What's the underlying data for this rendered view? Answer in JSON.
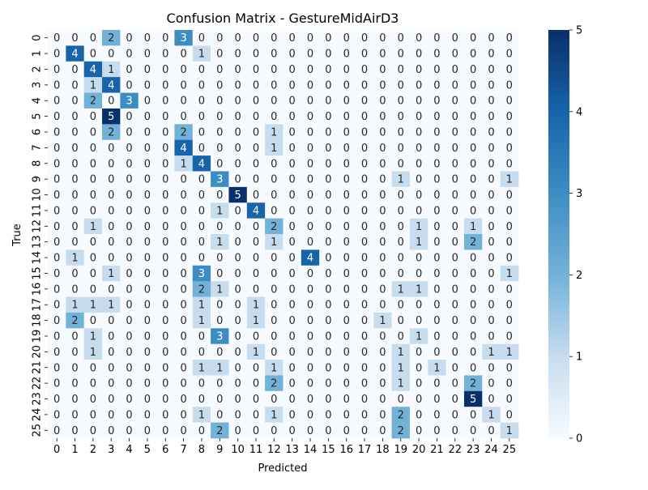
{
  "chart_data": {
    "type": "heatmap",
    "title": "Confusion Matrix - GestureMidAirD3",
    "xlabel": "Predicted",
    "ylabel": "True",
    "x_tick_labels": [
      "0",
      "1",
      "2",
      "3",
      "4",
      "5",
      "6",
      "7",
      "8",
      "9",
      "10",
      "11",
      "12",
      "13",
      "14",
      "15",
      "16",
      "17",
      "18",
      "19",
      "20",
      "21",
      "22",
      "23",
      "24",
      "25"
    ],
    "y_tick_labels": [
      "0",
      "1",
      "2",
      "3",
      "4",
      "5",
      "6",
      "7",
      "8",
      "9",
      "10",
      "11",
      "12",
      "13",
      "14",
      "15",
      "16",
      "17",
      "18",
      "19",
      "20",
      "21",
      "22",
      "23",
      "24",
      "25"
    ],
    "vmin": 0,
    "vmax": 5,
    "colorbar_ticks": [
      0,
      1,
      2,
      3,
      4,
      5
    ],
    "colormap": "Blues",
    "values": [
      [
        0,
        0,
        0,
        2,
        0,
        0,
        0,
        3,
        0,
        0,
        0,
        0,
        0,
        0,
        0,
        0,
        0,
        0,
        0,
        0,
        0,
        0,
        0,
        0,
        0,
        0
      ],
      [
        0,
        4,
        0,
        0,
        0,
        0,
        0,
        0,
        1,
        0,
        0,
        0,
        0,
        0,
        0,
        0,
        0,
        0,
        0,
        0,
        0,
        0,
        0,
        0,
        0,
        0
      ],
      [
        0,
        0,
        4,
        1,
        0,
        0,
        0,
        0,
        0,
        0,
        0,
        0,
        0,
        0,
        0,
        0,
        0,
        0,
        0,
        0,
        0,
        0,
        0,
        0,
        0,
        0
      ],
      [
        0,
        0,
        1,
        4,
        0,
        0,
        0,
        0,
        0,
        0,
        0,
        0,
        0,
        0,
        0,
        0,
        0,
        0,
        0,
        0,
        0,
        0,
        0,
        0,
        0,
        0
      ],
      [
        0,
        0,
        2,
        0,
        3,
        0,
        0,
        0,
        0,
        0,
        0,
        0,
        0,
        0,
        0,
        0,
        0,
        0,
        0,
        0,
        0,
        0,
        0,
        0,
        0,
        0
      ],
      [
        0,
        0,
        0,
        5,
        0,
        0,
        0,
        0,
        0,
        0,
        0,
        0,
        0,
        0,
        0,
        0,
        0,
        0,
        0,
        0,
        0,
        0,
        0,
        0,
        0,
        0
      ],
      [
        0,
        0,
        0,
        2,
        0,
        0,
        0,
        2,
        0,
        0,
        0,
        0,
        1,
        0,
        0,
        0,
        0,
        0,
        0,
        0,
        0,
        0,
        0,
        0,
        0,
        0
      ],
      [
        0,
        0,
        0,
        0,
        0,
        0,
        0,
        4,
        0,
        0,
        0,
        0,
        1,
        0,
        0,
        0,
        0,
        0,
        0,
        0,
        0,
        0,
        0,
        0,
        0,
        0
      ],
      [
        0,
        0,
        0,
        0,
        0,
        0,
        0,
        1,
        4,
        0,
        0,
        0,
        0,
        0,
        0,
        0,
        0,
        0,
        0,
        0,
        0,
        0,
        0,
        0,
        0,
        0
      ],
      [
        0,
        0,
        0,
        0,
        0,
        0,
        0,
        0,
        0,
        3,
        0,
        0,
        0,
        0,
        0,
        0,
        0,
        0,
        0,
        1,
        0,
        0,
        0,
        0,
        0,
        1
      ],
      [
        0,
        0,
        0,
        0,
        0,
        0,
        0,
        0,
        0,
        0,
        5,
        0,
        0,
        0,
        0,
        0,
        0,
        0,
        0,
        0,
        0,
        0,
        0,
        0,
        0,
        0
      ],
      [
        0,
        0,
        0,
        0,
        0,
        0,
        0,
        0,
        0,
        1,
        0,
        4,
        0,
        0,
        0,
        0,
        0,
        0,
        0,
        0,
        0,
        0,
        0,
        0,
        0,
        0
      ],
      [
        0,
        0,
        1,
        0,
        0,
        0,
        0,
        0,
        0,
        0,
        0,
        0,
        2,
        0,
        0,
        0,
        0,
        0,
        0,
        0,
        1,
        0,
        0,
        1,
        0,
        0
      ],
      [
        0,
        0,
        0,
        0,
        0,
        0,
        0,
        0,
        0,
        1,
        0,
        0,
        1,
        0,
        0,
        0,
        0,
        0,
        0,
        0,
        1,
        0,
        0,
        2,
        0,
        0
      ],
      [
        0,
        1,
        0,
        0,
        0,
        0,
        0,
        0,
        0,
        0,
        0,
        0,
        0,
        0,
        4,
        0,
        0,
        0,
        0,
        0,
        0,
        0,
        0,
        0,
        0,
        0
      ],
      [
        0,
        0,
        0,
        1,
        0,
        0,
        0,
        0,
        3,
        0,
        0,
        0,
        0,
        0,
        0,
        0,
        0,
        0,
        0,
        0,
        0,
        0,
        0,
        0,
        0,
        1
      ],
      [
        0,
        0,
        0,
        0,
        0,
        0,
        0,
        0,
        2,
        1,
        0,
        0,
        0,
        0,
        0,
        0,
        0,
        0,
        0,
        1,
        1,
        0,
        0,
        0,
        0,
        0
      ],
      [
        0,
        1,
        1,
        1,
        0,
        0,
        0,
        0,
        1,
        0,
        0,
        1,
        0,
        0,
        0,
        0,
        0,
        0,
        0,
        0,
        0,
        0,
        0,
        0,
        0,
        0
      ],
      [
        0,
        2,
        0,
        0,
        0,
        0,
        0,
        0,
        1,
        0,
        0,
        1,
        0,
        0,
        0,
        0,
        0,
        0,
        1,
        0,
        0,
        0,
        0,
        0,
        0,
        0
      ],
      [
        0,
        0,
        1,
        0,
        0,
        0,
        0,
        0,
        0,
        3,
        0,
        0,
        0,
        0,
        0,
        0,
        0,
        0,
        0,
        0,
        1,
        0,
        0,
        0,
        0,
        0
      ],
      [
        0,
        0,
        1,
        0,
        0,
        0,
        0,
        0,
        0,
        0,
        0,
        1,
        0,
        0,
        0,
        0,
        0,
        0,
        0,
        1,
        0,
        0,
        0,
        0,
        1,
        1
      ],
      [
        0,
        0,
        0,
        0,
        0,
        0,
        0,
        0,
        1,
        1,
        0,
        0,
        1,
        0,
        0,
        0,
        0,
        0,
        0,
        1,
        0,
        1,
        0,
        0,
        0,
        0
      ],
      [
        0,
        0,
        0,
        0,
        0,
        0,
        0,
        0,
        0,
        0,
        0,
        0,
        2,
        0,
        0,
        0,
        0,
        0,
        0,
        1,
        0,
        0,
        0,
        2,
        0,
        0
      ],
      [
        0,
        0,
        0,
        0,
        0,
        0,
        0,
        0,
        0,
        0,
        0,
        0,
        0,
        0,
        0,
        0,
        0,
        0,
        0,
        0,
        0,
        0,
        0,
        5,
        0,
        0
      ],
      [
        0,
        0,
        0,
        0,
        0,
        0,
        0,
        0,
        1,
        0,
        0,
        0,
        1,
        0,
        0,
        0,
        0,
        0,
        0,
        2,
        0,
        0,
        0,
        0,
        1,
        0
      ],
      [
        0,
        0,
        0,
        0,
        0,
        0,
        0,
        0,
        0,
        2,
        0,
        0,
        0,
        0,
        0,
        0,
        0,
        0,
        0,
        2,
        0,
        0,
        0,
        0,
        0,
        1
      ]
    ],
    "colors": {
      "c0": "#f7fbff",
      "c1": "#c7dcef",
      "c2": "#72b2d8",
      "c3": "#3d8dc4",
      "c4": "#1764ab",
      "c5": "#08306b",
      "dark_text": "#262626",
      "light_text": "#ffffff"
    }
  }
}
